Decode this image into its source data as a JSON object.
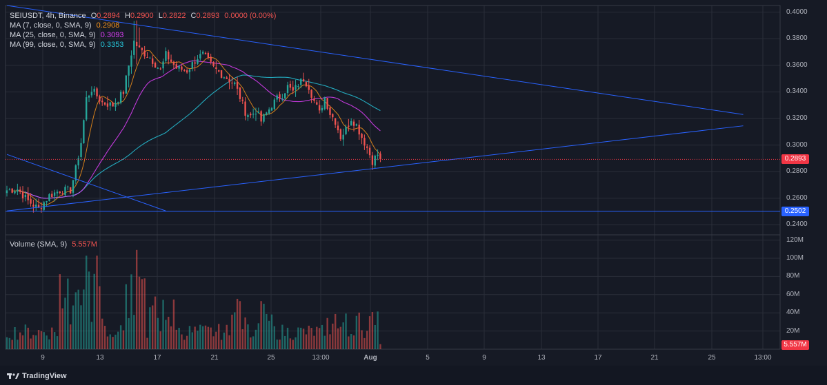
{
  "header": {
    "symbol": "SEIUSDT, 4h, Binance",
    "ohlc": {
      "open_label": "O",
      "open": "0.2894",
      "high_label": "H",
      "high": "0.2900",
      "low_label": "L",
      "low": "0.2822",
      "close_label": "C",
      "close": "0.2893",
      "change": "0.0000 (0.00%)"
    },
    "ma": [
      {
        "label": "MA (7, close, 0, SMA, 9)",
        "value": "0.2908",
        "color": "#f7931a"
      },
      {
        "label": "MA (25, close, 0, SMA, 9)",
        "value": "0.3093",
        "color": "#e040fb"
      },
      {
        "label": "MA (99, close, 0, SMA, 9)",
        "value": "0.3353",
        "color": "#26c6da"
      }
    ],
    "volume_label": "Volume (SMA, 9)",
    "volume_value": "5.557M"
  },
  "tags": {
    "last_price": "0.2893",
    "support": "0.2502",
    "volume_last": "5.557M"
  },
  "colors": {
    "up": "#26a69a",
    "down": "#ef5350",
    "trendline": "#2962ff",
    "support_tag": "#2962ff",
    "price_tag": "#f23645",
    "grid": "#2a2e39"
  },
  "brand": "TradingView",
  "chart_data": {
    "type": "candlestick",
    "price_axis": {
      "ticks": [
        "0.4000",
        "0.3800",
        "0.3600",
        "0.3400",
        "0.3200",
        "0.3000",
        "0.2800",
        "0.2600",
        "0.2400"
      ],
      "range": [
        0.233,
        0.405
      ]
    },
    "volume_axis": {
      "ticks": [
        "120M",
        "100M",
        "80M",
        "60M",
        "40M",
        "20M"
      ],
      "range": [
        0,
        125
      ]
    },
    "time_axis": {
      "labels": [
        "9",
        "13",
        "17",
        "21",
        "25",
        "13:00",
        "Aug",
        "5",
        "9",
        "13",
        "17",
        "21",
        "25",
        "13:00"
      ]
    },
    "anchors": [
      {
        "t": 0,
        "p": 0.266
      },
      {
        "t": 4,
        "p": 0.267
      },
      {
        "t": 8,
        "p": 0.258
      },
      {
        "t": 12,
        "p": 0.252
      },
      {
        "t": 16,
        "p": 0.262
      },
      {
        "t": 20,
        "p": 0.266
      },
      {
        "t": 24,
        "p": 0.266
      },
      {
        "t": 26,
        "p": 0.282
      },
      {
        "t": 28,
        "p": 0.302
      },
      {
        "t": 30,
        "p": 0.335
      },
      {
        "t": 32,
        "p": 0.342
      },
      {
        "t": 36,
        "p": 0.332
      },
      {
        "t": 40,
        "p": 0.33
      },
      {
        "t": 44,
        "p": 0.34
      },
      {
        "t": 46,
        "p": 0.36
      },
      {
        "t": 48,
        "p": 0.378
      },
      {
        "t": 50,
        "p": 0.372
      },
      {
        "t": 54,
        "p": 0.366
      },
      {
        "t": 58,
        "p": 0.356
      },
      {
        "t": 60,
        "p": 0.368
      },
      {
        "t": 64,
        "p": 0.358
      },
      {
        "t": 68,
        "p": 0.356
      },
      {
        "t": 72,
        "p": 0.366
      },
      {
        "t": 74,
        "p": 0.368
      },
      {
        "t": 78,
        "p": 0.358
      },
      {
        "t": 82,
        "p": 0.352
      },
      {
        "t": 86,
        "p": 0.346
      },
      {
        "t": 88,
        "p": 0.336
      },
      {
        "t": 90,
        "p": 0.325
      },
      {
        "t": 92,
        "p": 0.322
      },
      {
        "t": 94,
        "p": 0.326
      },
      {
        "t": 96,
        "p": 0.318
      },
      {
        "t": 98,
        "p": 0.324
      },
      {
        "t": 100,
        "p": 0.33
      },
      {
        "t": 102,
        "p": 0.335
      },
      {
        "t": 104,
        "p": 0.338
      },
      {
        "t": 106,
        "p": 0.344
      },
      {
        "t": 108,
        "p": 0.34
      },
      {
        "t": 110,
        "p": 0.346
      },
      {
        "t": 112,
        "p": 0.35
      },
      {
        "t": 114,
        "p": 0.344
      },
      {
        "t": 116,
        "p": 0.333
      },
      {
        "t": 118,
        "p": 0.324
      },
      {
        "t": 120,
        "p": 0.336
      },
      {
        "t": 122,
        "p": 0.324
      },
      {
        "t": 124,
        "p": 0.318
      },
      {
        "t": 126,
        "p": 0.306
      },
      {
        "t": 128,
        "p": 0.312
      },
      {
        "t": 130,
        "p": 0.32
      },
      {
        "t": 132,
        "p": 0.315
      },
      {
        "t": 134,
        "p": 0.306
      },
      {
        "t": 136,
        "p": 0.298
      },
      {
        "t": 138,
        "p": 0.288
      },
      {
        "t": 140,
        "p": 0.293
      },
      {
        "t": 141,
        "p": 0.2893
      }
    ],
    "trendlines": [
      {
        "name": "upper-descending",
        "from": {
          "t": 0,
          "p": 0.405
        },
        "to": {
          "t": 278,
          "p": 0.323
        }
      },
      {
        "name": "lower-ascending",
        "from": {
          "t": 0,
          "p": 0.2505
        },
        "to": {
          "t": 278,
          "p": 0.3145
        }
      },
      {
        "name": "short-descending",
        "from": {
          "t": 0,
          "p": 0.293
        },
        "to": {
          "t": 60,
          "p": 0.2505
        }
      }
    ],
    "support_level": 0.2502,
    "last_price": 0.2893
  }
}
